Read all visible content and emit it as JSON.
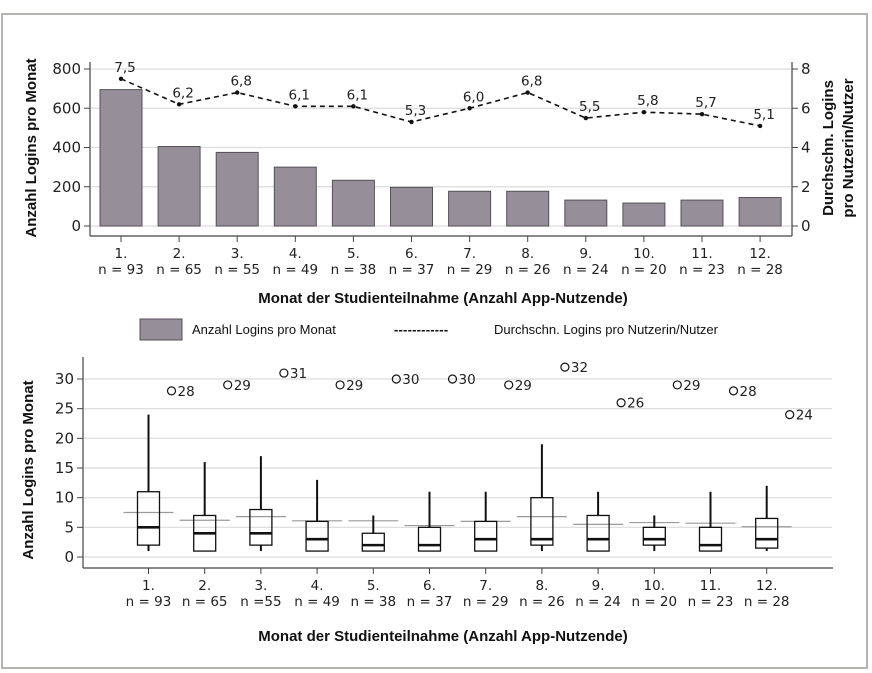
{
  "chart_data": [
    {
      "type": "bar",
      "title": "",
      "categories": [
        "1.",
        "2.",
        "3.",
        "4.",
        "5.",
        "6.",
        "7.",
        "8.",
        "9.",
        "10.",
        "11.",
        "12."
      ],
      "n_labels": [
        "n = 93",
        "n = 65",
        "n = 55",
        "n = 49",
        "n = 38",
        "n = 37",
        "n = 29",
        "n = 26",
        "n = 24",
        "n = 20",
        "n = 23",
        "n = 28"
      ],
      "xlabel": "Monat der Studienteilnahme (Anzahl App-Nutzende)",
      "ylabel": "Anzahl Logins pro Monat",
      "ylabel_right": [
        "Durchschn. Logins",
        "pro Nutzerin/Nutzer"
      ],
      "ylim": [
        0,
        800
      ],
      "ylim_right": [
        0,
        8
      ],
      "yticks": [
        "0",
        "200",
        "400",
        "600",
        "800"
      ],
      "yticks_right": [
        "0",
        "2",
        "4",
        "6",
        "8"
      ],
      "grid": true,
      "series": [
        {
          "name": "Anzahl Logins pro Monat",
          "type": "bar",
          "axis": "left",
          "color": "#968e99",
          "values": [
            695,
            405,
            375,
            300,
            233,
            197,
            177,
            177,
            132,
            117,
            132,
            145
          ]
        },
        {
          "name": "Durchschn. Logins pro Nutzerin/Nutzer",
          "type": "line",
          "style": "dashed",
          "axis": "right",
          "color": "#111111",
          "values": [
            7.5,
            6.2,
            6.8,
            6.1,
            6.1,
            5.3,
            6.0,
            6.8,
            5.5,
            5.8,
            5.7,
            5.1
          ],
          "labels": [
            "7,5",
            "6,2",
            "6,8",
            "6,1",
            "6,1",
            "5,3",
            "6,0",
            "6,8",
            "5,5",
            "5,8",
            "5,7",
            "5,1"
          ]
        }
      ],
      "legend": {
        "placement": "bottom",
        "items": [
          {
            "label": "Anzahl Logins pro Monat",
            "kind": "bar"
          },
          {
            "label": "Durchschn. Logins pro Nutzerin/Nutzer",
            "kind": "dashed-line",
            "symbol": "------------"
          }
        ]
      }
    },
    {
      "type": "boxplot",
      "title": "",
      "categories": [
        "1.",
        "2.",
        "3.",
        "4.",
        "5.",
        "6.",
        "7.",
        "8.",
        "9.",
        "10.",
        "11.",
        "12."
      ],
      "n_labels": [
        "n = 93",
        "n = 65",
        "n =55",
        "n = 49",
        "n = 38",
        "n = 37",
        "n = 29",
        "n = 26",
        "n = 24",
        "n = 20",
        "n = 23",
        "n = 28"
      ],
      "xlabel": "Monat der Studienteilnahme (Anzahl App-Nutzende)",
      "ylabel": "Anzahl Logins pro Monat",
      "ylim": [
        0,
        33
      ],
      "yticks": [
        "0",
        "5",
        "10",
        "15",
        "20",
        "25",
        "30"
      ],
      "grid": true,
      "boxes": [
        {
          "min": 1,
          "q1": 2,
          "median": 5,
          "q3": 11,
          "max": 24,
          "mean": 7.5,
          "outlier": 28,
          "outlier_label": "28"
        },
        {
          "min": 1,
          "q1": 1,
          "median": 4,
          "q3": 7,
          "max": 16,
          "mean": 6.2,
          "outlier": 29,
          "outlier_label": "29"
        },
        {
          "min": 1,
          "q1": 2,
          "median": 4,
          "q3": 8,
          "max": 17,
          "mean": 6.8,
          "outlier": 31,
          "outlier_label": "31"
        },
        {
          "min": 1,
          "q1": 1,
          "median": 3,
          "q3": 6,
          "max": 13,
          "mean": 6.1,
          "outlier": 29,
          "outlier_label": "29"
        },
        {
          "min": 1,
          "q1": 1,
          "median": 2,
          "q3": 4,
          "max": 7,
          "mean": 6.1,
          "outlier": 30,
          "outlier_label": "30"
        },
        {
          "min": 1,
          "q1": 1,
          "median": 2,
          "q3": 5,
          "max": 11,
          "mean": 5.3,
          "outlier": 30,
          "outlier_label": "30"
        },
        {
          "min": 1,
          "q1": 1,
          "median": 3,
          "q3": 6,
          "max": 11,
          "mean": 6.0,
          "outlier": 29,
          "outlier_label": "29"
        },
        {
          "min": 1,
          "q1": 2,
          "median": 3,
          "q3": 10,
          "max": 19,
          "mean": 6.8,
          "outlier": 32,
          "outlier_label": "32"
        },
        {
          "min": 1,
          "q1": 1,
          "median": 3,
          "q3": 7,
          "max": 11,
          "mean": 5.5,
          "outlier": 26,
          "outlier_label": "26"
        },
        {
          "min": 1,
          "q1": 2,
          "median": 3,
          "q3": 5,
          "max": 7,
          "mean": 5.8,
          "outlier": 29,
          "outlier_label": "29"
        },
        {
          "min": 1,
          "q1": 1,
          "median": 2,
          "q3": 5,
          "max": 11,
          "mean": 5.7,
          "outlier": 28,
          "outlier_label": "28"
        },
        {
          "min": 1,
          "q1": 1.5,
          "median": 3,
          "q3": 6.5,
          "max": 12,
          "mean": 5.1,
          "outlier": 24,
          "outlier_label": "24"
        }
      ]
    }
  ],
  "colors": {
    "bar": "#968e99",
    "bar_stroke": "#555058",
    "grid": "#dcdcdc",
    "frame": "#b4b4b0",
    "ink": "#111111"
  }
}
